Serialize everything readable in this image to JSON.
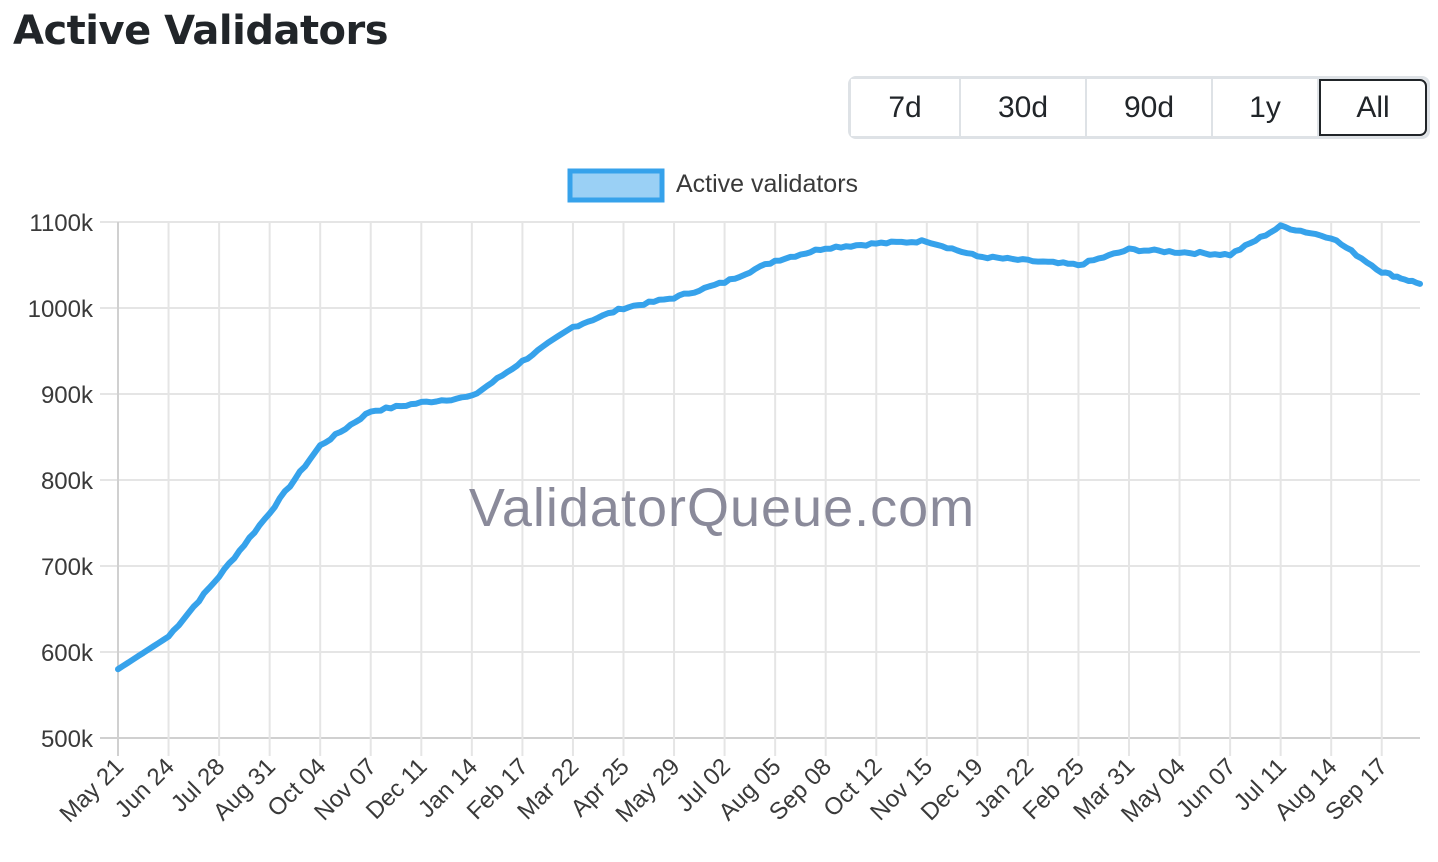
{
  "page": {
    "title": "Active Validators"
  },
  "range_selector": {
    "options": [
      {
        "label": "7d",
        "active": false
      },
      {
        "label": "30d",
        "active": false
      },
      {
        "label": "90d",
        "active": false
      },
      {
        "label": "1y",
        "active": false
      },
      {
        "label": "All",
        "active": true
      }
    ]
  },
  "watermark": "ValidatorQueue.com",
  "colors": {
    "line": "#36a2eb",
    "legend_fill": "#9ad0f5",
    "grid": "#e5e5e5",
    "axis": "#d0d0d0",
    "tick_text": "#3a3a3a",
    "watermark": "#8a8a9a"
  },
  "chart_data": {
    "type": "line",
    "title": "Active Validators",
    "xlabel": "",
    "ylabel": "",
    "legend": {
      "position": "top",
      "entries": [
        "Active validators"
      ]
    },
    "grid": true,
    "ylim": [
      500000,
      1100000
    ],
    "yticks": [
      "500k",
      "600k",
      "700k",
      "800k",
      "900k",
      "1000k",
      "1100k"
    ],
    "categories": [
      "May 21",
      "Jun 24",
      "Jul 28",
      "Aug 31",
      "Oct 04",
      "Nov 07",
      "Dec 11",
      "Jan 14",
      "Feb 17",
      "Mar 22",
      "Apr 25",
      "May 29",
      "Jul 02",
      "Aug 05",
      "Sep 08",
      "Oct 12",
      "Nov 15",
      "Dec 19",
      "Jan 22",
      "Feb 25",
      "Mar 31",
      "May 04",
      "Jun 07",
      "Jul 11",
      "Aug 14",
      "Sep 17"
    ],
    "series": [
      {
        "name": "Active validators",
        "values": [
          580000,
          618000,
          688000,
          762000,
          840000,
          880000,
          890000,
          897000,
          938000,
          978000,
          1000000,
          1012000,
          1030000,
          1055000,
          1070000,
          1075000,
          1078000,
          1060000,
          1055000,
          1050000,
          1068000,
          1065000,
          1062000,
          1095000,
          1082000,
          1042000
        ],
        "end_value": 1028000
      }
    ]
  }
}
